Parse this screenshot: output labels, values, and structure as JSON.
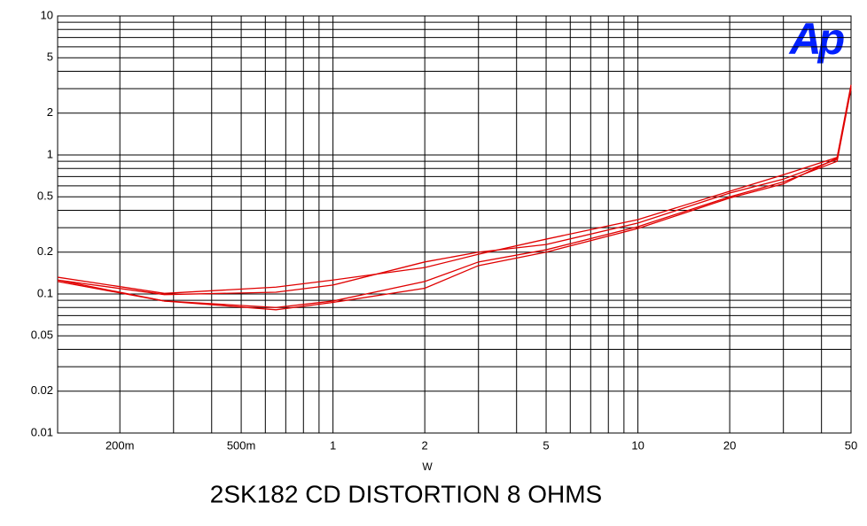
{
  "chart_data": {
    "type": "line",
    "title": "2SK182 CD DISTORTION 8 OHMS",
    "x_label": "W",
    "logo": "Ap",
    "x_log": true,
    "y_log": true,
    "grid": true,
    "xlim": [
      0.125,
      50
    ],
    "ylim": [
      0.01,
      10
    ],
    "xticks": [
      {
        "value": 0.2,
        "label": "200m"
      },
      {
        "value": 0.5,
        "label": "500m"
      },
      1,
      2,
      5,
      10,
      20,
      50
    ],
    "yticks": [
      0.01,
      0.02,
      0.05,
      0.1,
      0.2,
      0.5,
      1,
      2,
      5,
      10
    ],
    "x_grid_lines": [
      0.2,
      0.3,
      0.4,
      0.5,
      0.6,
      0.7,
      0.8,
      0.9,
      1,
      2,
      3,
      4,
      5,
      6,
      7,
      8,
      9,
      10,
      20,
      30,
      40,
      50
    ],
    "y_grid_lines": [
      0.01,
      0.02,
      0.03,
      0.04,
      0.05,
      0.06,
      0.07,
      0.08,
      0.09,
      0.1,
      0.2,
      0.3,
      0.4,
      0.5,
      0.6,
      0.7,
      0.8,
      0.9,
      1,
      2,
      3,
      4,
      5,
      6,
      7,
      8,
      9,
      10
    ],
    "x": [
      0.125,
      0.28,
      0.65,
      1,
      2,
      3,
      5,
      10,
      20,
      30,
      45,
      50
    ],
    "series": [
      {
        "color": "#e00000",
        "values": [
          0.132,
          0.101,
          0.112,
          0.126,
          0.155,
          0.193,
          0.248,
          0.343,
          0.548,
          0.72,
          0.96,
          3.2
        ]
      },
      {
        "color": "#e00000",
        "values": [
          0.126,
          0.099,
          0.103,
          0.116,
          0.17,
          0.2,
          0.227,
          0.324,
          0.532,
          0.67,
          0.93,
          3.1
        ]
      },
      {
        "color": "#e00000",
        "values": [
          0.126,
          0.089,
          0.08,
          0.089,
          0.123,
          0.17,
          0.208,
          0.305,
          0.5,
          0.64,
          0.9,
          3.0
        ]
      },
      {
        "color": "#e00000",
        "values": [
          0.123,
          0.089,
          0.077,
          0.087,
          0.11,
          0.16,
          0.2,
          0.296,
          0.49,
          0.62,
          0.95,
          3.0
        ]
      }
    ]
  }
}
